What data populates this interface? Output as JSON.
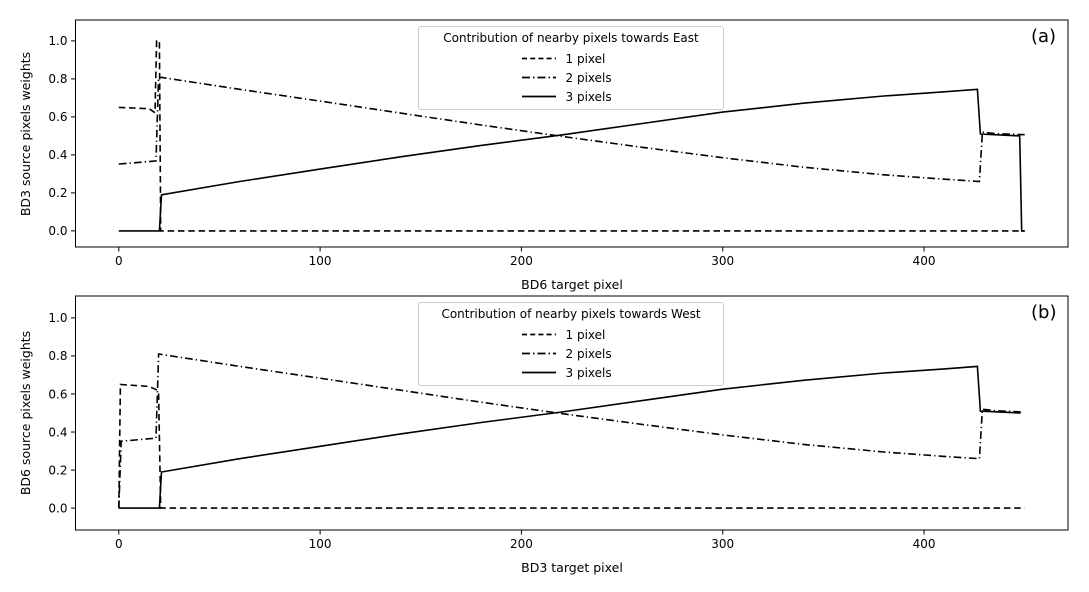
{
  "figure": {
    "background": "#ffffff",
    "line_color": "#000000",
    "legend_border_color": "#cccccc"
  },
  "chart_data": [
    {
      "type": "line",
      "panel_label": "(a)",
      "xlabel": "BD6 target pixel",
      "ylabel": "BD3 source pixels weights",
      "legend_title": "Contribution of nearby pixels towards East",
      "legend_position": "upper center",
      "grid": false,
      "xlim": [
        -21.5,
        471.5
      ],
      "ylim": [
        -0.085,
        1.11
      ],
      "xticks": [
        0,
        100,
        200,
        300,
        400
      ],
      "xtick_labels": [
        "0",
        "100",
        "200",
        "300",
        "400"
      ],
      "yticks": [
        0.0,
        0.2,
        0.4,
        0.6,
        0.8,
        1.0
      ],
      "ytick_labels": [
        "0.0",
        "0.2",
        "0.4",
        "0.6",
        "0.8",
        "1.0"
      ],
      "series": [
        {
          "name": "1 pixel",
          "linestyle": "dashed",
          "points": [
            [
              0,
              0.65
            ],
            [
              15,
              0.643
            ],
            [
              18,
              0.622
            ],
            [
              18.8,
              1.0
            ],
            [
              20.2,
              1.0
            ],
            [
              20.8,
              0.0
            ],
            [
              450,
              0.0
            ]
          ]
        },
        {
          "name": "2 pixels",
          "linestyle": "dashdot",
          "points": [
            [
              0,
              0.352
            ],
            [
              12,
              0.362
            ],
            [
              18.5,
              0.368
            ],
            [
              19.8,
              0.81
            ],
            [
              60,
              0.745
            ],
            [
              100,
              0.683
            ],
            [
              140,
              0.62
            ],
            [
              180,
              0.557
            ],
            [
              220,
              0.497
            ],
            [
              260,
              0.44
            ],
            [
              300,
              0.385
            ],
            [
              340,
              0.335
            ],
            [
              380,
              0.295
            ],
            [
              410,
              0.272
            ],
            [
              427.5,
              0.26
            ],
            [
              429,
              0.52
            ],
            [
              435,
              0.512
            ],
            [
              450,
              0.506
            ]
          ]
        },
        {
          "name": "3 pixels",
          "linestyle": "solid",
          "points": [
            [
              0,
              0.0
            ],
            [
              20.2,
              0.0
            ],
            [
              21.2,
              0.19
            ],
            [
              60,
              0.26
            ],
            [
              100,
              0.325
            ],
            [
              140,
              0.39
            ],
            [
              180,
              0.45
            ],
            [
              220,
              0.505
            ],
            [
              260,
              0.565
            ],
            [
              300,
              0.625
            ],
            [
              340,
              0.672
            ],
            [
              380,
              0.71
            ],
            [
              410,
              0.732
            ],
            [
              426.5,
              0.745
            ],
            [
              428,
              0.51
            ],
            [
              447.5,
              0.5
            ],
            [
              448.5,
              0.0
            ],
            [
              450,
              0.0
            ]
          ]
        }
      ]
    },
    {
      "type": "line",
      "panel_label": "(b)",
      "xlabel": "BD3 target pixel",
      "ylabel": "BD6 source pixels weights",
      "legend_title": "Contribution of nearby pixels towards West",
      "legend_position": "upper center",
      "grid": false,
      "xlim": [
        -21.5,
        471.5
      ],
      "ylim": [
        -0.115,
        1.115
      ],
      "xticks": [
        0,
        100,
        200,
        300,
        400
      ],
      "xtick_labels": [
        "0",
        "100",
        "200",
        "300",
        "400"
      ],
      "yticks": [
        0.0,
        0.2,
        0.4,
        0.6,
        0.8,
        1.0
      ],
      "ytick_labels": [
        "0.0",
        "0.2",
        "0.4",
        "0.6",
        "0.8",
        "1.0"
      ],
      "series": [
        {
          "name": "1 pixel",
          "linestyle": "dashed",
          "points": [
            [
              0,
              0.0
            ],
            [
              0.8,
              0.65
            ],
            [
              15,
              0.64
            ],
            [
              19,
              0.621
            ],
            [
              19.8,
              0.6
            ],
            [
              20.8,
              0.0
            ],
            [
              450,
              0.0
            ]
          ]
        },
        {
          "name": "2 pixels",
          "linestyle": "dashdot",
          "points": [
            [
              0,
              0.0
            ],
            [
              1.2,
              0.352
            ],
            [
              12,
              0.362
            ],
            [
              18.5,
              0.368
            ],
            [
              19.8,
              0.81
            ],
            [
              60,
              0.745
            ],
            [
              100,
              0.683
            ],
            [
              140,
              0.62
            ],
            [
              180,
              0.557
            ],
            [
              220,
              0.497
            ],
            [
              260,
              0.44
            ],
            [
              300,
              0.385
            ],
            [
              340,
              0.335
            ],
            [
              380,
              0.295
            ],
            [
              410,
              0.272
            ],
            [
              427.5,
              0.26
            ],
            [
              429,
              0.52
            ],
            [
              435,
              0.512
            ],
            [
              448,
              0.506
            ]
          ]
        },
        {
          "name": "3 pixels",
          "linestyle": "solid",
          "points": [
            [
              0,
              0.0
            ],
            [
              20.2,
              0.0
            ],
            [
              21.2,
              0.19
            ],
            [
              60,
              0.26
            ],
            [
              100,
              0.325
            ],
            [
              140,
              0.39
            ],
            [
              180,
              0.45
            ],
            [
              220,
              0.505
            ],
            [
              260,
              0.565
            ],
            [
              300,
              0.625
            ],
            [
              340,
              0.672
            ],
            [
              380,
              0.71
            ],
            [
              410,
              0.732
            ],
            [
              426.5,
              0.745
            ],
            [
              428,
              0.51
            ],
            [
              448,
              0.5
            ]
          ]
        }
      ]
    }
  ]
}
